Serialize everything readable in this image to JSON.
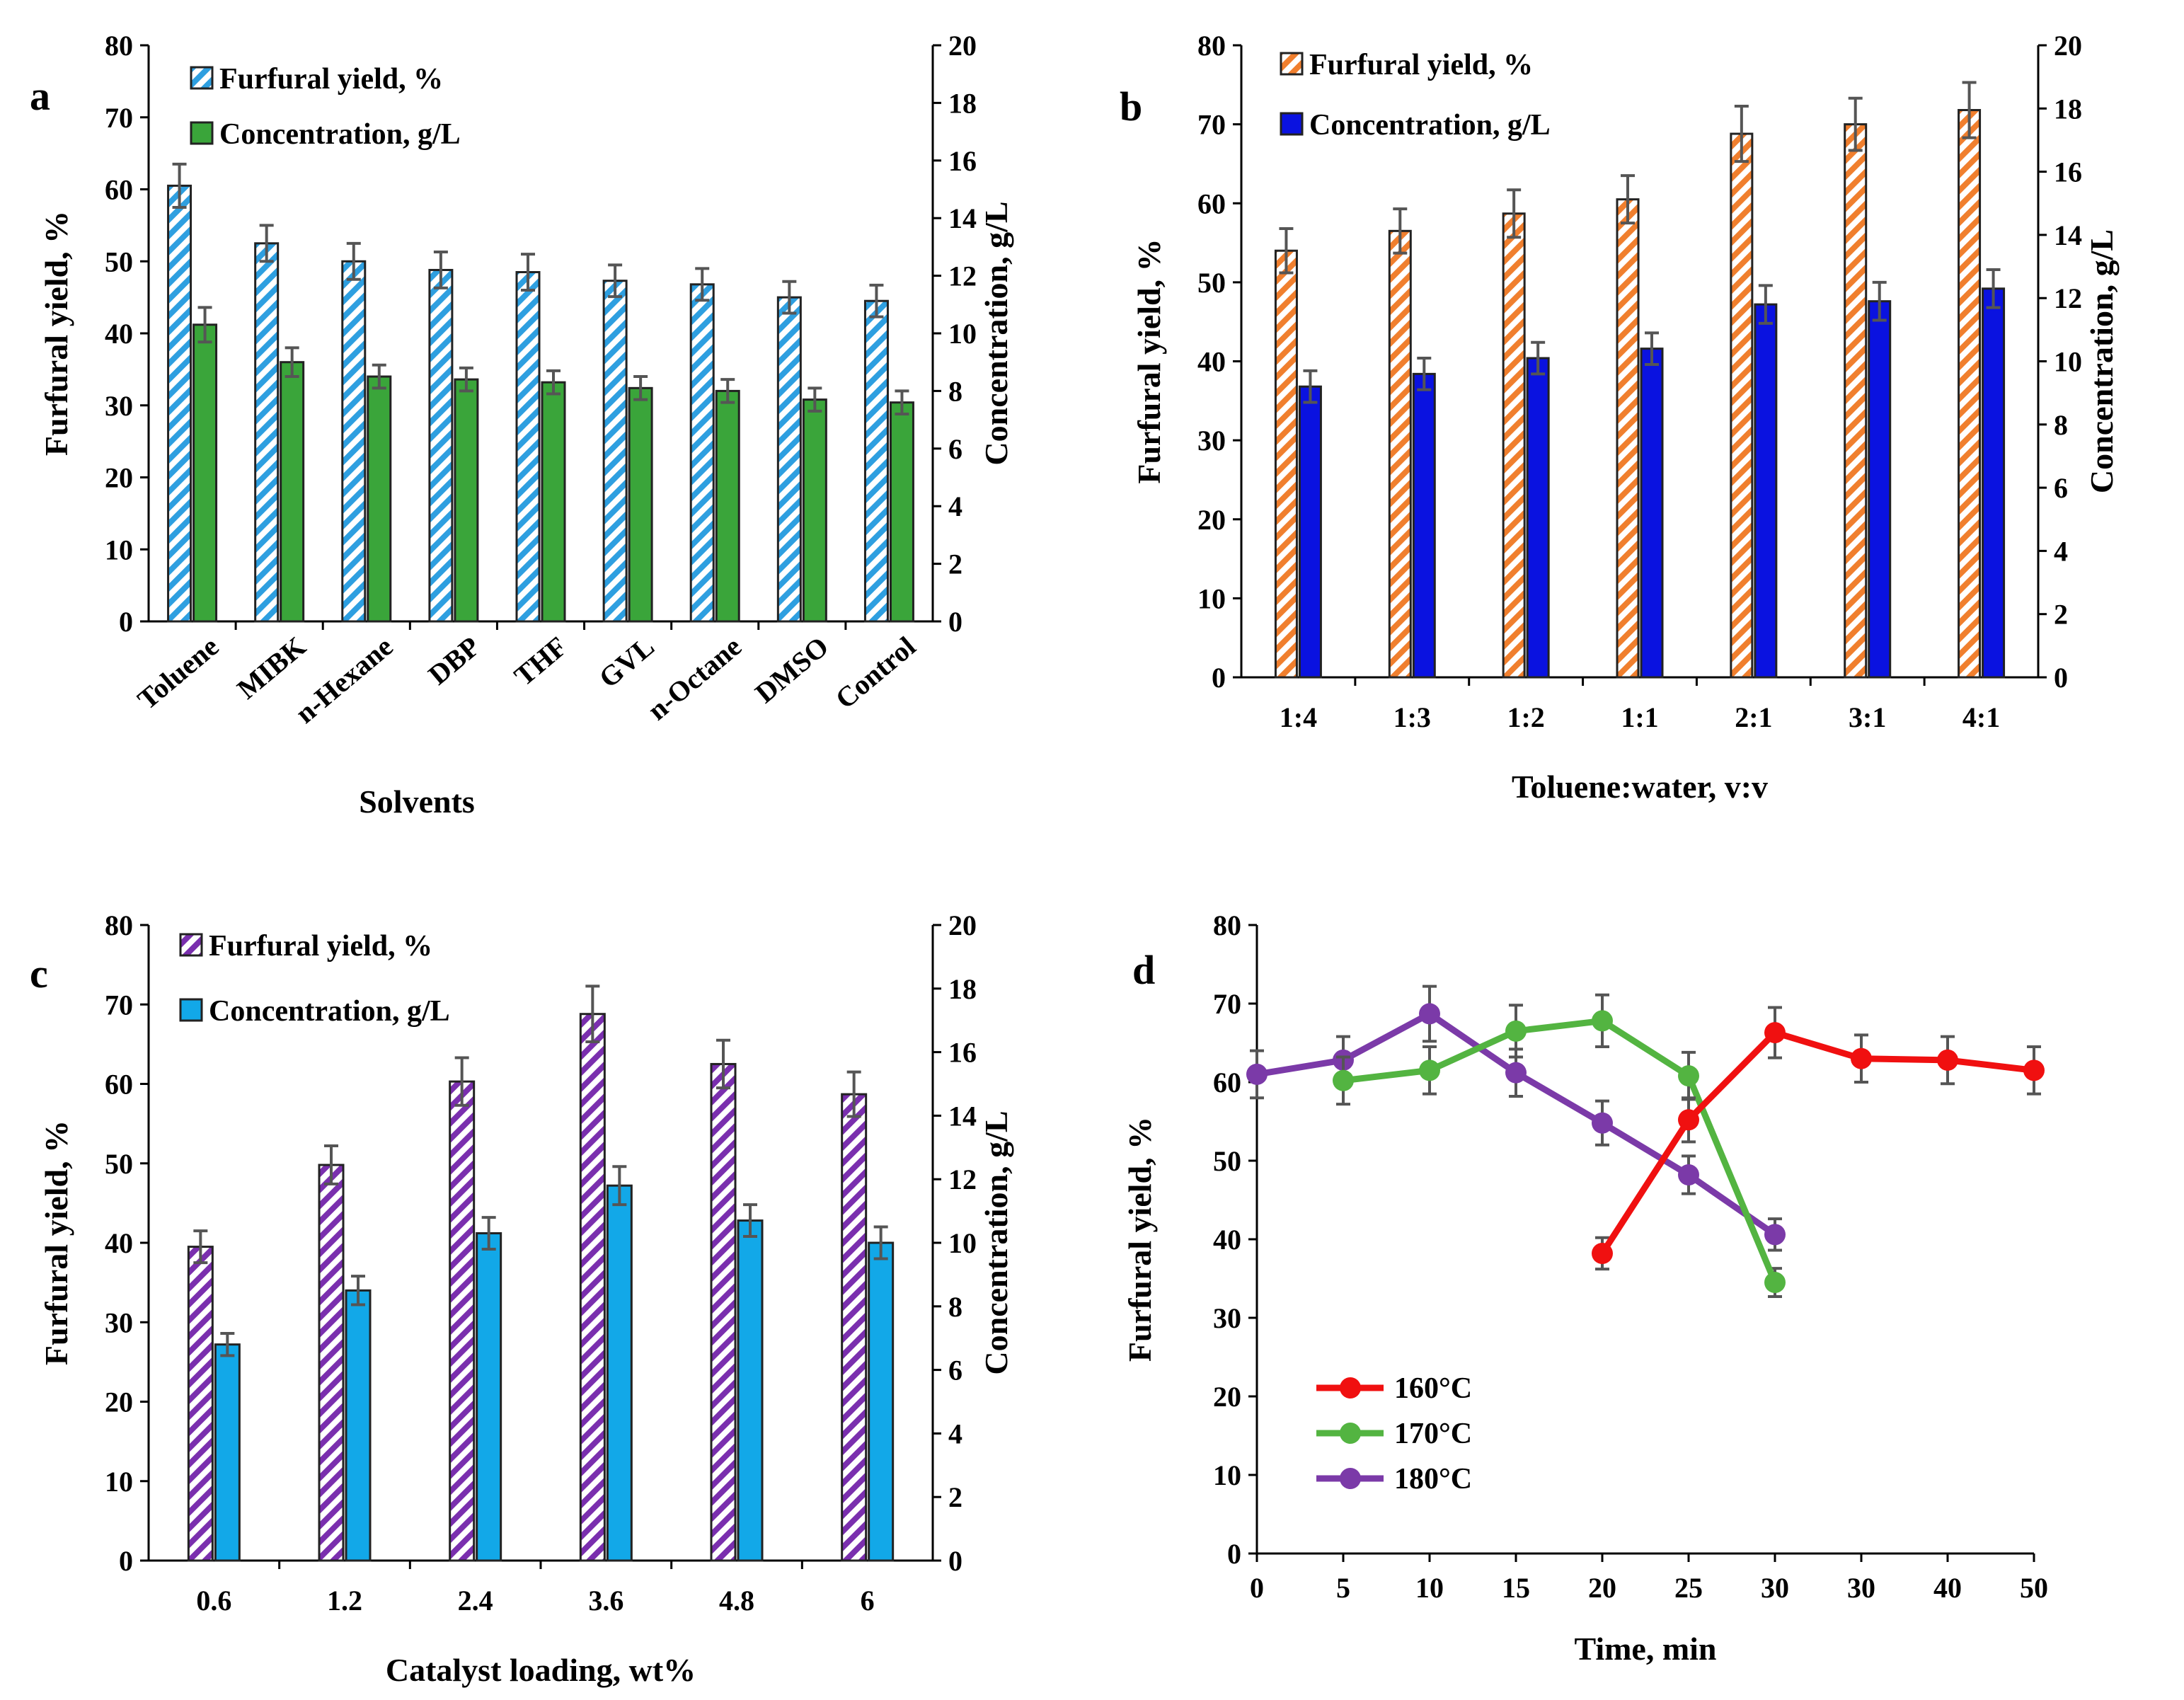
{
  "figure": {
    "panels": [
      "a",
      "b",
      "c",
      "d"
    ]
  },
  "colors": {
    "a_yield_stripe": "#2e9fe0",
    "a_conc": "#3aa53a",
    "b_yield_stripe": "#f07f2e",
    "b_conc": "#0a12e0",
    "c_yield_stripe": "#7a2fae",
    "c_conc": "#12a8e8",
    "d_160": "#f01010",
    "d_170": "#53b441",
    "d_180": "#7b3aa8",
    "errorbar": "#555555"
  },
  "chart_data": [
    {
      "panel": "a",
      "type": "bar",
      "xlabel": "Solvents",
      "ylabel": "Furfural yield, %",
      "ylabel_right": "Concentration, g/L",
      "ylim": [
        0,
        80
      ],
      "ylim_right": [
        0,
        20
      ],
      "yticks": [
        "0",
        "10",
        "20",
        "30",
        "40",
        "50",
        "60",
        "70",
        "80"
      ],
      "yticks_right": [
        "0",
        "2",
        "4",
        "6",
        "8",
        "10",
        "12",
        "14",
        "16",
        "18",
        "20"
      ],
      "categories": [
        "Toluene",
        "MIBK",
        "n-Hexane",
        "DBP",
        "THF",
        "GVL",
        "n-Octane",
        "DMSO",
        "Control"
      ],
      "series": [
        {
          "name": "Furfural yield, %",
          "axis": "left",
          "style": "hatched",
          "values": [
            60.5,
            52.5,
            50,
            48.8,
            48.5,
            47.3,
            46.8,
            45,
            44.5
          ],
          "errors": [
            3.0,
            2.5,
            2.5,
            2.5,
            2.5,
            2.2,
            2.2,
            2.2,
            2.2
          ]
        },
        {
          "name": "Concentration, g/L",
          "axis": "right",
          "style": "solid",
          "values": [
            10.3,
            9.0,
            8.5,
            8.4,
            8.3,
            8.1,
            8.0,
            7.7,
            7.6
          ],
          "errors": [
            0.6,
            0.5,
            0.4,
            0.4,
            0.4,
            0.4,
            0.4,
            0.4,
            0.4
          ]
        }
      ]
    },
    {
      "panel": "b",
      "type": "bar",
      "xlabel": "Toluene:water, v:v",
      "ylabel": "Furfural yield, %",
      "ylabel_right": "Concentration, g/L",
      "ylim": [
        0,
        80
      ],
      "ylim_right": [
        0,
        20
      ],
      "yticks": [
        "0",
        "10",
        "20",
        "30",
        "40",
        "50",
        "60",
        "70",
        "80"
      ],
      "yticks_right": [
        "0",
        "2",
        "4",
        "6",
        "8",
        "10",
        "12",
        "14",
        "16",
        "18",
        "20"
      ],
      "categories": [
        "1:4",
        "1:3",
        "1:2",
        "1:1",
        "2:1",
        "3:1",
        "4:1"
      ],
      "series": [
        {
          "name": "Furfural yield, %",
          "axis": "left",
          "style": "hatched",
          "values": [
            54,
            56.5,
            58.7,
            60.5,
            68.8,
            70,
            71.8
          ],
          "errors": [
            2.8,
            2.8,
            3.0,
            3.0,
            3.5,
            3.3,
            3.5
          ]
        },
        {
          "name": "Concentration, g/L",
          "axis": "right",
          "style": "solid",
          "values": [
            9.2,
            9.6,
            10.1,
            10.4,
            11.8,
            11.9,
            12.3
          ],
          "errors": [
            0.5,
            0.5,
            0.5,
            0.5,
            0.6,
            0.6,
            0.6
          ]
        }
      ]
    },
    {
      "panel": "c",
      "type": "bar",
      "xlabel": "Catalyst loading, wt%",
      "ylabel": "Furfural yield, %",
      "ylabel_right": "Concentration, g/L",
      "ylim": [
        0,
        80
      ],
      "ylim_right": [
        0,
        20
      ],
      "yticks": [
        "0",
        "10",
        "20",
        "30",
        "40",
        "50",
        "60",
        "70",
        "80"
      ],
      "yticks_right": [
        "0",
        "2",
        "4",
        "6",
        "8",
        "10",
        "12",
        "14",
        "16",
        "18",
        "20"
      ],
      "categories": [
        "0.6",
        "1.2",
        "2.4",
        "3.6",
        "4.8",
        "6"
      ],
      "series": [
        {
          "name": "Furfural yield, %",
          "axis": "left",
          "style": "hatched",
          "values": [
            39.5,
            49.8,
            60.3,
            68.8,
            62.5,
            58.7
          ],
          "errors": [
            2.0,
            2.4,
            3.0,
            3.5,
            3.0,
            2.8
          ]
        },
        {
          "name": "Concentration, g/L",
          "axis": "right",
          "style": "solid",
          "values": [
            6.8,
            8.5,
            10.3,
            11.8,
            10.7,
            10.0
          ],
          "errors": [
            0.35,
            0.45,
            0.5,
            0.6,
            0.5,
            0.5
          ]
        }
      ]
    },
    {
      "panel": "d",
      "type": "line",
      "xlabel": "Time, min",
      "ylabel": "Furfural yield, %",
      "ylim": [
        0,
        80
      ],
      "yticks": [
        "0",
        "10",
        "20",
        "30",
        "40",
        "50",
        "60",
        "70",
        "80"
      ],
      "xticks": [
        "0",
        "5",
        "10",
        "15",
        "20",
        "25",
        "30",
        "30",
        "40",
        "50"
      ],
      "series": [
        {
          "name": "160°C",
          "x_index": [
            4,
            5,
            6,
            7,
            8,
            9
          ],
          "values": [
            38.2,
            55.2,
            66.3,
            63,
            62.8,
            61.5
          ],
          "errors": [
            2.0,
            2.8,
            3.2,
            3.0,
            3.0,
            3.0
          ]
        },
        {
          "name": "170°C",
          "x_index": [
            1,
            2,
            3,
            4,
            5,
            6
          ],
          "values": [
            60.2,
            61.5,
            66.5,
            67.8,
            60.8,
            34.5
          ],
          "errors": [
            3.0,
            3.0,
            3.3,
            3.3,
            3.0,
            1.8
          ]
        },
        {
          "name": "180°C",
          "x_index": [
            0,
            1,
            2,
            3,
            4,
            5,
            6
          ],
          "values": [
            61,
            62.8,
            68.7,
            61.2,
            54.8,
            48.2,
            40.6
          ],
          "errors": [
            3.0,
            3.0,
            3.5,
            3.0,
            2.8,
            2.4,
            2.0
          ]
        }
      ]
    }
  ]
}
